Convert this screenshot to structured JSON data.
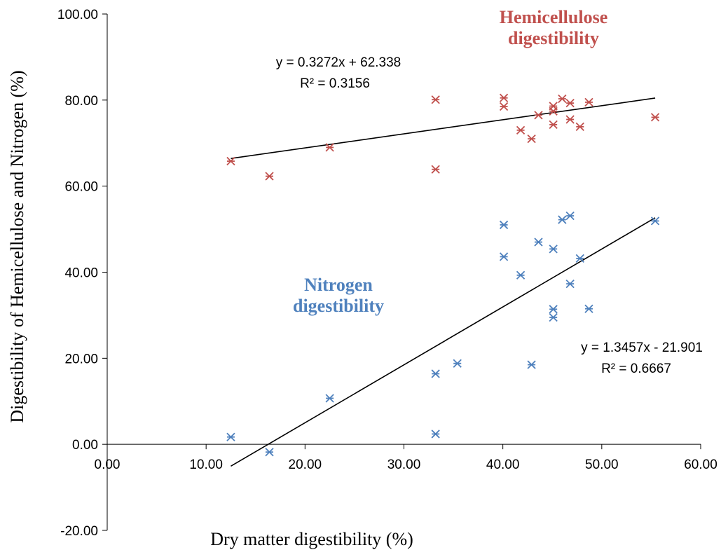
{
  "chart_data": {
    "type": "scatter",
    "xlabel": "Dry matter digestibility (%)",
    "ylabel": "Digestibility of Hemicellulose and Nitrogen (%)",
    "xlim": [
      0,
      60
    ],
    "ylim": [
      -20,
      100
    ],
    "x_ticks": [
      "0.00",
      "10.00",
      "20.00",
      "30.00",
      "40.00",
      "50.00",
      "60.00"
    ],
    "y_ticks": [
      "-20.00",
      "0.00",
      "20.00",
      "40.00",
      "60.00",
      "80.00",
      "100.00"
    ],
    "grid": false,
    "marker": "asterisk",
    "series": [
      {
        "name": "Hemicellulose digestibility",
        "name_lines": [
          "Hemicellulose",
          "digestibility"
        ],
        "color": "#c0504d",
        "points": [
          [
            12.5,
            65.8
          ],
          [
            16.4,
            62.3
          ],
          [
            22.5,
            69.0
          ],
          [
            33.2,
            80.1
          ],
          [
            33.2,
            63.9
          ],
          [
            40.1,
            80.5
          ],
          [
            40.1,
            78.5
          ],
          [
            41.8,
            73.0
          ],
          [
            42.9,
            71.0
          ],
          [
            43.6,
            76.5
          ],
          [
            45.1,
            78.6
          ],
          [
            45.1,
            77.4
          ],
          [
            45.1,
            74.3
          ],
          [
            46.0,
            80.3
          ],
          [
            46.8,
            79.3
          ],
          [
            46.8,
            75.5
          ],
          [
            47.8,
            73.8
          ],
          [
            48.7,
            79.5
          ],
          [
            55.4,
            76.0
          ]
        ],
        "trendline": {
          "slope": 0.3272,
          "intercept": 62.338,
          "x_range": [
            12.5,
            55.4
          ],
          "equation": "y = 0.3272x + 62.338",
          "r2": "R² = 0.3156"
        }
      },
      {
        "name": "Nitrogen digestibility",
        "name_lines": [
          "Nitrogen",
          "digestibility"
        ],
        "color": "#4f81bd",
        "points": [
          [
            12.5,
            1.7
          ],
          [
            16.4,
            -1.8
          ],
          [
            22.5,
            10.7
          ],
          [
            33.2,
            16.4
          ],
          [
            33.2,
            2.4
          ],
          [
            35.4,
            18.8
          ],
          [
            40.1,
            51.0
          ],
          [
            40.1,
            43.6
          ],
          [
            41.8,
            39.3
          ],
          [
            42.9,
            18.5
          ],
          [
            43.6,
            47.0
          ],
          [
            45.1,
            45.4
          ],
          [
            45.1,
            31.4
          ],
          [
            45.1,
            29.5
          ],
          [
            46.0,
            52.2
          ],
          [
            46.8,
            53.1
          ],
          [
            46.8,
            37.3
          ],
          [
            47.8,
            43.2
          ],
          [
            48.7,
            31.5
          ],
          [
            55.4,
            51.9
          ]
        ],
        "trendline": {
          "slope": 1.3457,
          "intercept": -21.901,
          "x_range": [
            12.5,
            55.4
          ],
          "equation": "y = 1.3457x - 21.901",
          "r2": "R² = 0.6667"
        }
      }
    ]
  }
}
